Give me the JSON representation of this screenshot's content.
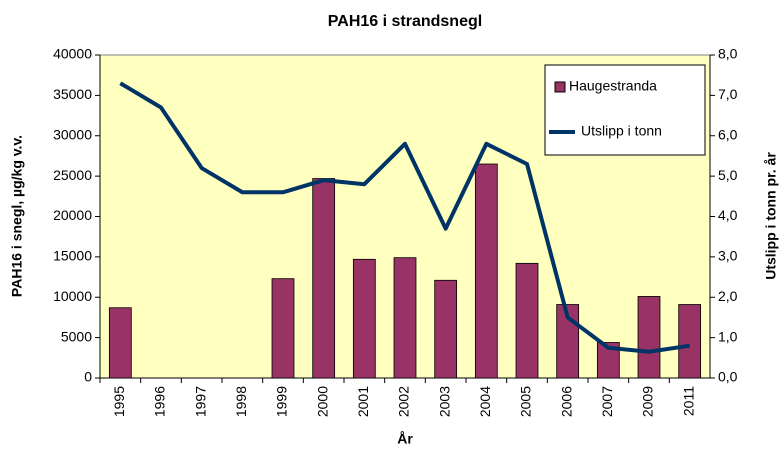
{
  "chart_data": {
    "type": "bar",
    "title": "PAH16 i strandsnegl",
    "x_label": "År",
    "y_label": "PAH16 i snegl, µg/kg v.v.",
    "y2_label": "Utslipp i tonn pr. år",
    "categories": [
      "1995",
      "1996",
      "1997",
      "1998",
      "1999",
      "2000",
      "2001",
      "2002",
      "2003",
      "2004",
      "2005",
      "2006",
      "2007",
      "2009",
      "2011"
    ],
    "series": [
      {
        "name": "Haugestranda",
        "type": "bar",
        "color": "#993366",
        "values": [
          8700,
          null,
          null,
          null,
          12300,
          24700,
          14700,
          14900,
          12100,
          26500,
          14200,
          9100,
          4400,
          10100,
          9100
        ]
      },
      {
        "name": "Utslipp i tonn",
        "type": "line",
        "axis": "y2",
        "color": "#003366",
        "values": [
          7.3,
          6.7,
          5.2,
          4.6,
          4.6,
          4.9,
          4.8,
          5.8,
          3.7,
          5.8,
          5.3,
          1.5,
          0.75,
          0.65,
          0.8
        ]
      }
    ],
    "ylim": [
      0,
      40000
    ],
    "yticks": [
      0,
      5000,
      10000,
      15000,
      20000,
      25000,
      30000,
      35000,
      40000
    ],
    "y2lim": [
      0,
      8
    ],
    "y2ticks": [
      {
        "value": 0,
        "label": "0,0"
      },
      {
        "value": 1,
        "label": "1,0"
      },
      {
        "value": 2,
        "label": "2,0"
      },
      {
        "value": 3,
        "label": "3,0"
      },
      {
        "value": 4,
        "label": "4,0"
      },
      {
        "value": 5,
        "label": "5,0"
      },
      {
        "value": 6,
        "label": "6,0"
      },
      {
        "value": 7,
        "label": "7,0"
      },
      {
        "value": 8,
        "label": "8,0"
      }
    ],
    "plot_background": "#ffffc0",
    "legend": "upper right"
  }
}
